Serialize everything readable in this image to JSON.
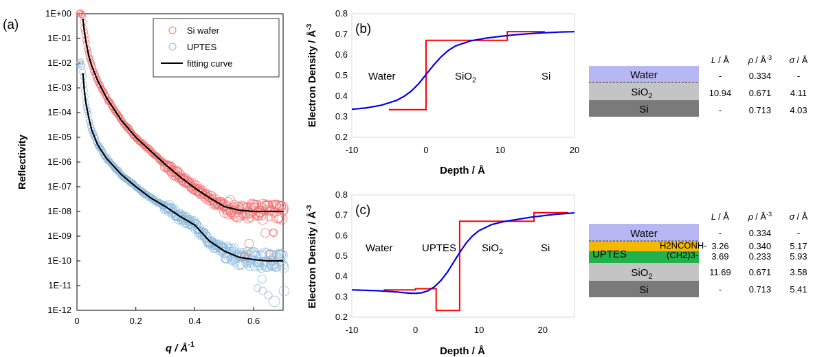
{
  "colors": {
    "si_wafer": "#f07070",
    "uptes": "#8ab8dc",
    "fit": "#000000",
    "step_profile": "#ff0000",
    "smooth_profile": "#0000ee",
    "water": "#b7b7f3",
    "uptes_top": "#f5b800",
    "uptes_bottom": "#22b24c",
    "sio2": "#c4c4c4",
    "si": "#7a7a7a"
  },
  "chart_data": [
    {
      "panel": "(a)",
      "type": "scatter",
      "xlabel": "q / Å",
      "xlabel_sup": "-1",
      "ylabel": "Reflectivity",
      "xlim": [
        0,
        0.7
      ],
      "ylim_log10": [
        -12,
        0
      ],
      "yscale": "log",
      "x_ticks": [
        "0",
        "0.2",
        "0.4",
        "0.6"
      ],
      "x_tick_values": [
        0,
        0.2,
        0.4,
        0.6
      ],
      "y_ticks": [
        "1E-12",
        "1E-11",
        "1E-10",
        "1E-09",
        "1E-08",
        "1E-07",
        "1E-06",
        "1E-05",
        "1E-04",
        "1E-03",
        "1E-02",
        "1E-01",
        "1E+00"
      ],
      "legend": [
        "Si wafer",
        "UPTES",
        "fitting curve"
      ],
      "legend_position": "top-right",
      "series": [
        {
          "name": "Si wafer",
          "kind": "markers",
          "q": [
            0.008,
            0.012,
            0.016,
            0.02,
            0.025,
            0.03,
            0.04,
            0.05,
            0.07,
            0.1,
            0.15,
            0.2,
            0.25,
            0.3,
            0.35,
            0.4,
            0.45,
            0.5,
            0.55,
            0.6,
            0.65,
            0.7
          ],
          "log10R": [
            0,
            0,
            0,
            -0.2,
            -0.7,
            -1.1,
            -1.7,
            -2.1,
            -2.7,
            -3.4,
            -4.3,
            -5.0,
            -5.55,
            -6.1,
            -6.6,
            -7.05,
            -7.45,
            -7.8,
            -7.95,
            -8.0,
            -8.0,
            -8.0
          ]
        },
        {
          "name": "UPTES",
          "kind": "markers",
          "q": [
            0.008,
            0.012,
            0.016,
            0.02,
            0.025,
            0.03,
            0.04,
            0.05,
            0.07,
            0.1,
            0.15,
            0.2,
            0.25,
            0.3,
            0.35,
            0.4,
            0.45,
            0.5,
            0.55,
            0.6,
            0.65,
            0.7
          ],
          "log10R": [
            -2,
            -2,
            -2,
            -2.4,
            -3.1,
            -3.6,
            -4.2,
            -4.7,
            -5.3,
            -5.85,
            -6.5,
            -7.0,
            -7.45,
            -7.8,
            -8.2,
            -8.55,
            -9.2,
            -9.6,
            -9.85,
            -9.95,
            -10.0,
            -10.0
          ]
        },
        {
          "name": "fitting curve",
          "kind": "line",
          "q": [
            0.02,
            0.025,
            0.03,
            0.04,
            0.05,
            0.07,
            0.1,
            0.15,
            0.2,
            0.25,
            0.3,
            0.35,
            0.4,
            0.45,
            0.5,
            0.55,
            0.6,
            0.65,
            0.7
          ],
          "log10R": [
            -0.2,
            -0.7,
            -1.1,
            -1.7,
            -2.1,
            -2.7,
            -3.4,
            -4.3,
            -5.0,
            -5.55,
            -6.1,
            -6.6,
            -7.05,
            -7.45,
            -7.8,
            -7.95,
            -8.0,
            -8.0,
            -8.0
          ]
        },
        {
          "name": "fitting curve",
          "kind": "line",
          "q": [
            0.02,
            0.025,
            0.03,
            0.04,
            0.05,
            0.07,
            0.1,
            0.15,
            0.2,
            0.25,
            0.3,
            0.35,
            0.4,
            0.45,
            0.5,
            0.55,
            0.6,
            0.65,
            0.7
          ],
          "log10R": [
            -2.4,
            -3.1,
            -3.6,
            -4.2,
            -4.7,
            -5.3,
            -5.85,
            -6.5,
            -7.0,
            -7.45,
            -7.8,
            -8.2,
            -8.55,
            -9.2,
            -9.6,
            -9.85,
            -9.95,
            -10.0,
            -10.0
          ]
        }
      ]
    },
    {
      "panel": "(b)",
      "type": "line",
      "xlabel": "Depth /  Å",
      "ylabel": "Electron Density / Å",
      "ylabel_sup": "-3",
      "xlim": [
        -10,
        20
      ],
      "ylim": [
        0.2,
        0.8
      ],
      "x_ticks": [
        "-10",
        "0",
        "10",
        "20"
      ],
      "x_tick_values": [
        -10,
        0,
        10,
        20
      ],
      "y_ticks": [
        "0.2",
        "0.3",
        "0.4",
        "0.5",
        "0.6",
        "0.7",
        "0.8"
      ],
      "y_tick_values": [
        0.2,
        0.3,
        0.4,
        0.5,
        0.6,
        0.7,
        0.8
      ],
      "regions": [
        "Water",
        "SiO",
        "Si"
      ],
      "step": {
        "x": [
          -5,
          0,
          0,
          10.94,
          10.94,
          16
        ],
        "y": [
          0.334,
          0.334,
          0.671,
          0.671,
          0.713,
          0.713
        ]
      },
      "smooth": {
        "x": [
          -10,
          -8,
          -6,
          -4,
          -3,
          -2,
          -1,
          0,
          1,
          2,
          3,
          4,
          6,
          8,
          10,
          12,
          15,
          18,
          20
        ],
        "y": [
          0.336,
          0.343,
          0.356,
          0.379,
          0.398,
          0.424,
          0.46,
          0.505,
          0.55,
          0.59,
          0.622,
          0.644,
          0.668,
          0.681,
          0.69,
          0.698,
          0.706,
          0.711,
          0.713
        ]
      }
    },
    {
      "panel": "(c)",
      "type": "line",
      "xlabel": "Depth /  Å",
      "ylabel": "Electron Density / Å",
      "ylabel_sup": "-3",
      "xlim": [
        -10,
        25
      ],
      "ylim": [
        0.2,
        0.8
      ],
      "x_ticks": [
        "-10",
        "0",
        "10",
        "20"
      ],
      "x_tick_values": [
        -10,
        0,
        10,
        20
      ],
      "y_ticks": [
        "0.2",
        "0.3",
        "0.4",
        "0.5",
        "0.6",
        "0.7",
        "0.8"
      ],
      "y_tick_values": [
        0.2,
        0.3,
        0.4,
        0.5,
        0.6,
        0.7,
        0.8
      ],
      "regions": [
        "Water",
        "UPTES",
        "SiO",
        "Si"
      ],
      "step": {
        "x": [
          -5,
          0,
          0,
          3.26,
          3.26,
          6.95,
          6.95,
          18.64,
          18.64,
          24
        ],
        "y": [
          0.334,
          0.334,
          0.34,
          0.34,
          0.233,
          0.233,
          0.671,
          0.671,
          0.713,
          0.713
        ]
      },
      "smooth": {
        "x": [
          -10,
          -6,
          -3,
          -1,
          0,
          1,
          2,
          3,
          4,
          5,
          6,
          7,
          8,
          9,
          10,
          12,
          14,
          16,
          18,
          20,
          22,
          25
        ],
        "y": [
          0.334,
          0.33,
          0.324,
          0.318,
          0.317,
          0.32,
          0.33,
          0.35,
          0.38,
          0.42,
          0.47,
          0.52,
          0.565,
          0.6,
          0.625,
          0.655,
          0.67,
          0.68,
          0.69,
          0.698,
          0.705,
          0.712
        ]
      }
    }
  ],
  "table_b": {
    "headers": [
      "L",
      "ρ",
      "σ"
    ],
    "header_units": [
      "/ Å",
      "/ Å",
      "/ Å"
    ],
    "rho_unit_sup": "-3",
    "layers": [
      "Water",
      "SiO",
      "Si"
    ],
    "rows": [
      [
        "-",
        "0.334",
        "-"
      ],
      [
        "10.94",
        "0.671",
        "4.11"
      ],
      [
        "-",
        "0.713",
        "4.03"
      ]
    ]
  },
  "table_c": {
    "headers": [
      "L",
      "ρ",
      "σ"
    ],
    "header_units": [
      "/ Å",
      "/ Å",
      "/ Å"
    ],
    "rho_unit_sup": "-3",
    "layers": [
      "Water",
      "UPTES",
      "SiO",
      "Si"
    ],
    "uptes_top": "H2NCONH-",
    "uptes_bottom": "(CH2)3-",
    "rows": [
      [
        "-",
        "0.334",
        "-"
      ],
      [
        "3.26",
        "0.340",
        "5.17"
      ],
      [
        "3.69",
        "0.233",
        "5.93"
      ],
      [
        "11.69",
        "0.671",
        "3.58"
      ],
      [
        "-",
        "0.713",
        "5.41"
      ]
    ]
  },
  "subscript_2": "2",
  "subscript_3": "3"
}
